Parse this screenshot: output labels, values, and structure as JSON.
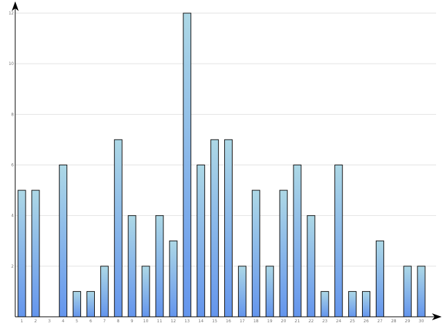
{
  "chart_data": {
    "type": "bar",
    "categories": [
      "1",
      "2",
      "3",
      "4",
      "5",
      "6",
      "7",
      "8",
      "9",
      "10",
      "11",
      "12",
      "13",
      "14",
      "15",
      "16",
      "17",
      "18",
      "19",
      "20",
      "21",
      "22",
      "23",
      "24",
      "25",
      "26",
      "27",
      "28",
      "29",
      "30"
    ],
    "values": [
      5,
      5,
      0,
      6,
      1,
      1,
      2,
      7,
      4,
      2,
      4,
      3,
      12,
      6,
      7,
      7,
      2,
      5,
      2,
      5,
      6,
      4,
      1,
      6,
      1,
      1,
      3,
      0,
      2,
      2
    ],
    "y_ticks": [
      "2",
      "4",
      "6",
      "8",
      "10",
      "12"
    ],
    "ylim": [
      0,
      12
    ],
    "grid": true,
    "colors": {
      "bar_top": "#add8e6",
      "bar_bottom": "#6495ed",
      "bar_edge": "#111111",
      "grid": "#e2e2e2"
    }
  }
}
